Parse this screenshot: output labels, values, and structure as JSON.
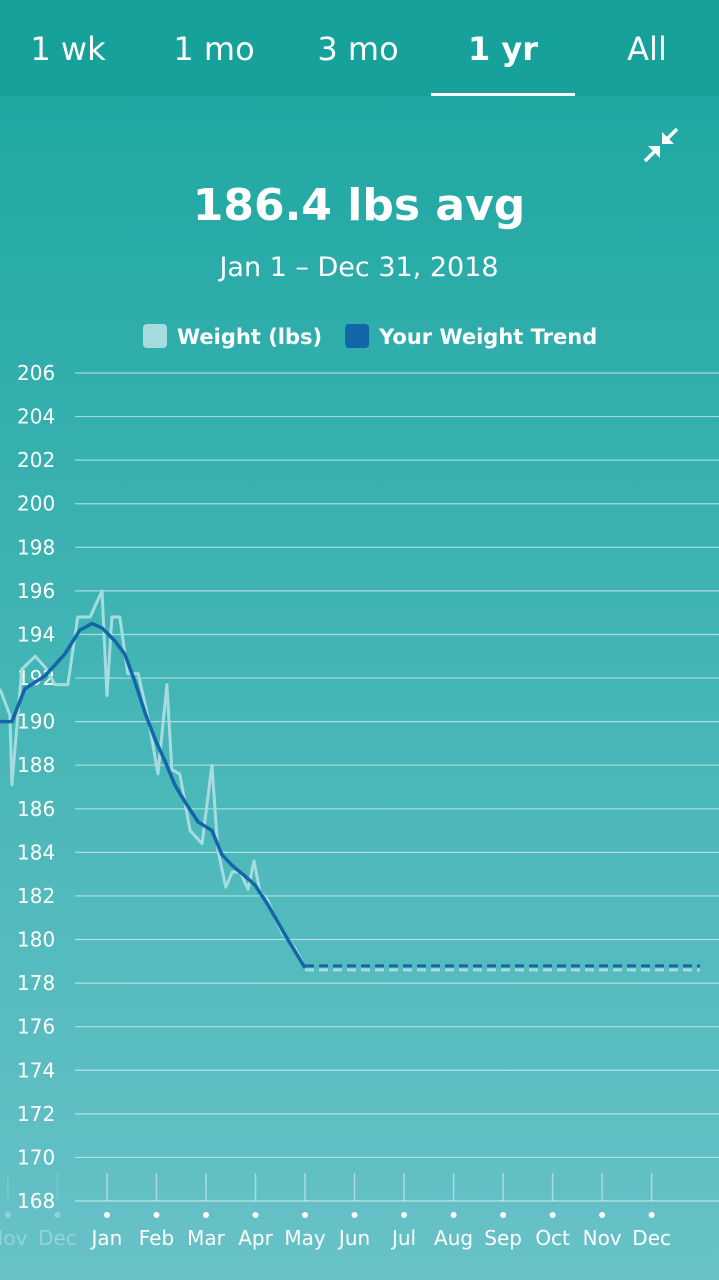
{
  "tabs": [
    "1 wk",
    "1 mo",
    "3 mo",
    "1 yr",
    "All"
  ],
  "chart_data": {
    "type": "line",
    "title": "186.4 lbs avg",
    "subtitle": "Jan 1 – Dec 31, 2018",
    "ylim": [
      168,
      206
    ],
    "yticks": [
      168,
      170,
      172,
      174,
      176,
      178,
      180,
      182,
      184,
      186,
      188,
      190,
      192,
      194,
      196,
      198,
      200,
      202,
      204,
      206
    ],
    "grid": true,
    "xlim": [
      -2.16,
      12.36
    ],
    "xticks": [
      {
        "value": -2,
        "label": "Nov"
      },
      {
        "value": -1,
        "label": "Dec"
      },
      {
        "value": 0,
        "label": "Jan"
      },
      {
        "value": 1,
        "label": "Feb"
      },
      {
        "value": 2,
        "label": "Mar"
      },
      {
        "value": 3,
        "label": "Apr"
      },
      {
        "value": 4,
        "label": "May"
      },
      {
        "value": 5,
        "label": "Jun"
      },
      {
        "value": 6,
        "label": "Jul"
      },
      {
        "value": 7,
        "label": "Aug"
      },
      {
        "value": 8,
        "label": "Sep"
      },
      {
        "value": 9,
        "label": "Oct"
      },
      {
        "value": 10,
        "label": "Nov"
      },
      {
        "value": 11,
        "label": "Dec"
      }
    ],
    "series": [
      {
        "name": "Weight (lbs)",
        "color": "#a6dcdf",
        "x": [
          -2.16,
          -1.96,
          -1.92,
          -1.72,
          -1.45,
          -1.25,
          -1.05,
          -0.79,
          -0.59,
          -0.34,
          -0.1,
          0,
          0.1,
          0.26,
          0.42,
          0.63,
          0.83,
          1.03,
          1.21,
          1.31,
          1.47,
          1.68,
          1.92,
          2.12,
          2.24,
          2.4,
          2.53,
          2.69,
          2.85,
          2.97,
          3.09,
          3.25,
          3.39,
          3.54,
          3.8,
          4.0
        ],
        "values": [
          191.5,
          190.3,
          187.1,
          192.4,
          193.0,
          192.5,
          191.7,
          191.7,
          194.8,
          194.8,
          196.0,
          191.2,
          194.8,
          194.8,
          192.2,
          192.2,
          190.2,
          187.6,
          191.7,
          187.8,
          187.6,
          185.0,
          184.4,
          188.0,
          184.1,
          182.4,
          183.1,
          183.1,
          182.3,
          183.6,
          182.2,
          181.8,
          181.0,
          180.3,
          179.6,
          178.7
        ]
      },
      {
        "name": "Your Weight Trend",
        "color": "#1466a8",
        "x": [
          -2.16,
          -1.92,
          -1.66,
          -1.25,
          -0.85,
          -0.55,
          -0.3,
          -0.1,
          0.16,
          0.36,
          0.57,
          0.77,
          0.97,
          1.17,
          1.37,
          1.58,
          1.84,
          2.12,
          2.32,
          2.53,
          2.79,
          2.99,
          3.25,
          3.6,
          4.0
        ],
        "values": [
          190.0,
          190.0,
          191.5,
          192.1,
          193.1,
          194.2,
          194.5,
          194.3,
          193.7,
          193.1,
          191.8,
          190.4,
          189.2,
          188.2,
          187.1,
          186.3,
          185.4,
          185.0,
          183.9,
          183.4,
          182.9,
          182.5,
          181.6,
          180.2,
          178.7
        ]
      }
    ]
  }
}
